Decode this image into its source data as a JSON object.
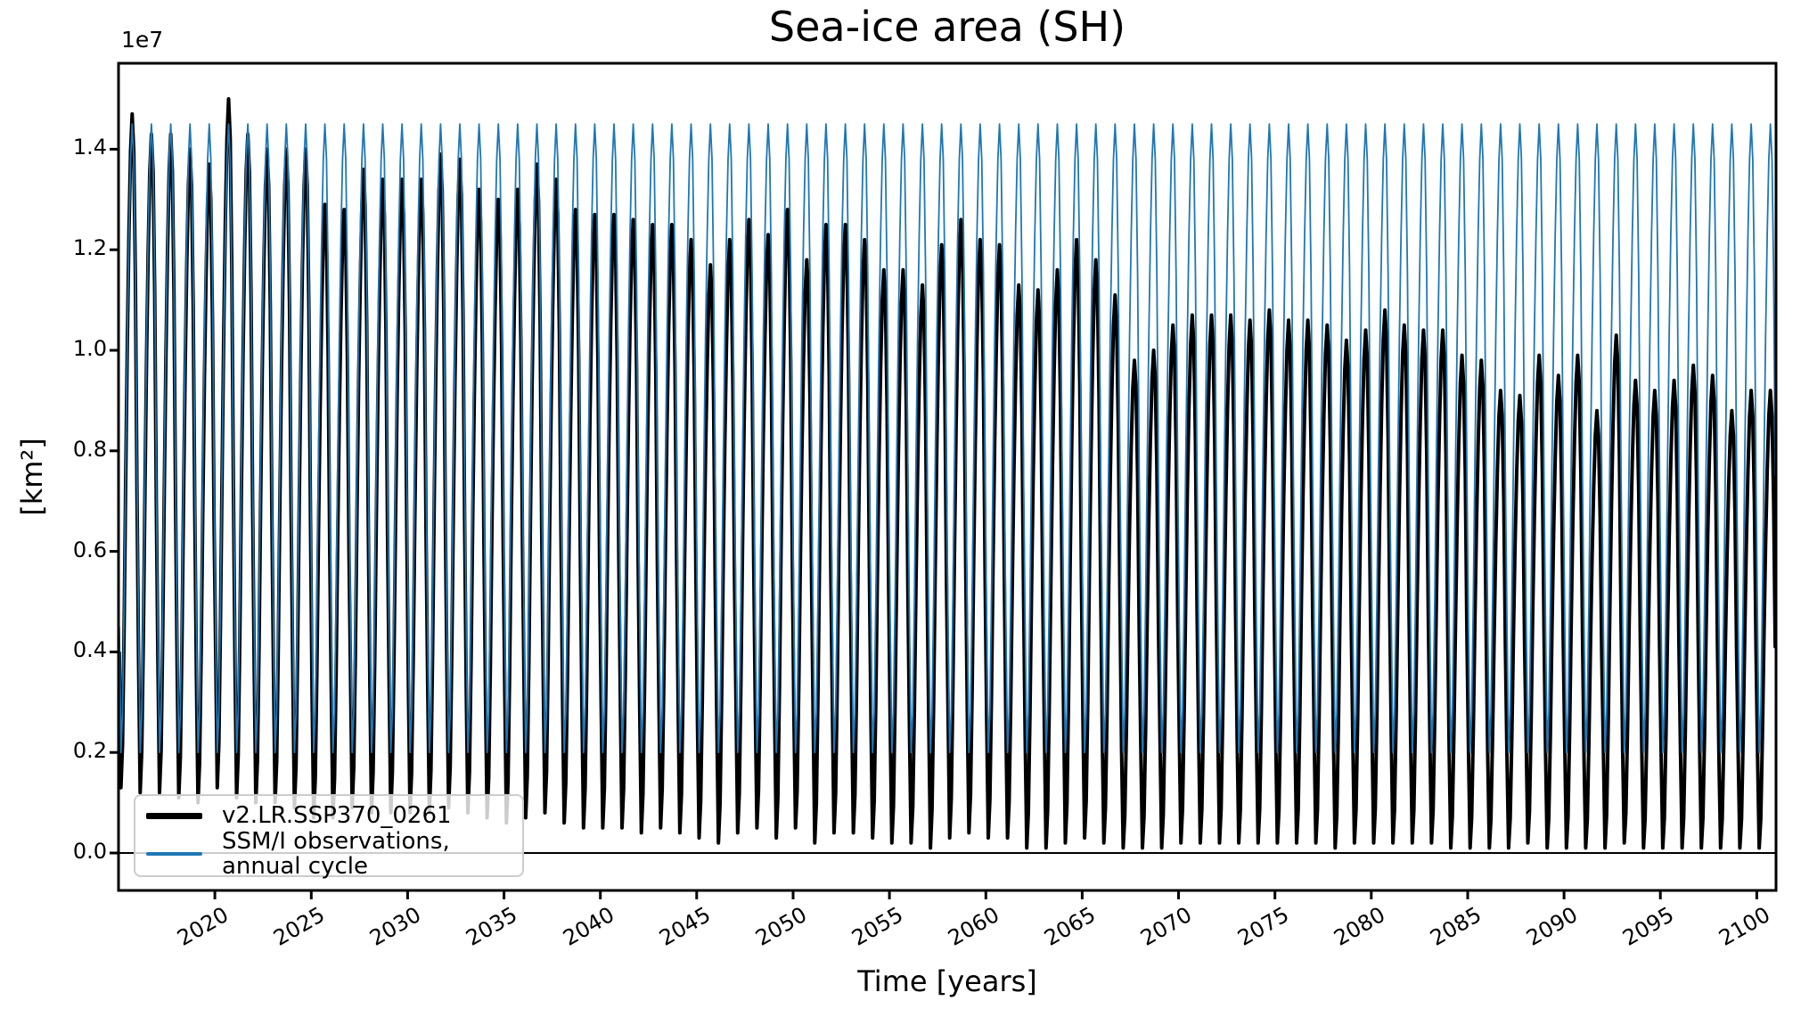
{
  "figure": {
    "title": "Sea-ice area (SH)"
  },
  "axes": {
    "offset_text": "1e7",
    "xlabel": "Time [years]",
    "ylabel": "[km²]"
  },
  "legend": {
    "entries": [
      {
        "label": "v2.LR.SSP370_0261",
        "color": "#000000",
        "sample_thickness": 7
      },
      {
        "label": "SSM/I observations, annual cycle",
        "color": "#1f77b4",
        "sample_thickness": 4
      }
    ]
  },
  "chart_data": {
    "type": "line",
    "title": "Sea-ice area (SH)",
    "xlabel": "Time [years]",
    "ylabel": "[km²]",
    "offset_text": "1e7",
    "units": "km², values in 1e7",
    "grid": false,
    "legend_position": "lower left",
    "zero_line": true,
    "xlim": [
      2015,
      2101
    ],
    "ylim_1e7": [
      -0.075,
      1.572
    ],
    "xticks": [
      2020,
      2025,
      2030,
      2035,
      2040,
      2045,
      2050,
      2055,
      2060,
      2065,
      2070,
      2075,
      2080,
      2085,
      2090,
      2095,
      2100
    ],
    "yticks_1e7": [
      0.0,
      0.2,
      0.4,
      0.6,
      0.8,
      1.0,
      1.2,
      1.4
    ],
    "normalized_monthly_shape": [
      0.2,
      0.0,
      0.064,
      0.24,
      0.464,
      0.664,
      0.824,
      0.944,
      1.0,
      0.944,
      0.76,
      0.44
    ],
    "series": [
      {
        "name": "v2.LR.SSP370_0261",
        "color": "#000000",
        "linewidth": 4,
        "kind": "monthly_values_built_from_annual_envelope",
        "start_year": 2015,
        "end_year": 2100,
        "annual_max_1e7": [
          1.47,
          1.43,
          1.43,
          1.4,
          1.37,
          1.5,
          1.43,
          1.4,
          1.4,
          1.4,
          1.29,
          1.28,
          1.36,
          1.34,
          1.34,
          1.34,
          1.39,
          1.38,
          1.32,
          1.3,
          1.32,
          1.37,
          1.34,
          1.28,
          1.27,
          1.27,
          1.26,
          1.25,
          1.25,
          1.22,
          1.17,
          1.22,
          1.26,
          1.23,
          1.28,
          1.18,
          1.25,
          1.25,
          1.22,
          1.16,
          1.16,
          1.13,
          1.21,
          1.26,
          1.22,
          1.21,
          1.13,
          1.12,
          1.16,
          1.22,
          1.18,
          1.11,
          0.98,
          1.0,
          1.05,
          1.07,
          1.07,
          1.07,
          1.06,
          1.08,
          1.06,
          1.06,
          1.05,
          1.02,
          1.04,
          1.08,
          1.05,
          1.04,
          1.04,
          0.99,
          0.98,
          0.92,
          0.91,
          0.99,
          0.95,
          0.99,
          0.88,
          1.03,
          0.94,
          0.92,
          0.94,
          0.97,
          0.95,
          0.88,
          0.92,
          0.92
        ],
        "annual_min_1e7": [
          0.13,
          0.12,
          0.12,
          0.11,
          0.1,
          0.13,
          0.11,
          0.1,
          0.1,
          0.09,
          0.07,
          0.07,
          0.09,
          0.08,
          0.08,
          0.08,
          0.08,
          0.09,
          0.08,
          0.07,
          0.06,
          0.07,
          0.08,
          0.06,
          0.05,
          0.05,
          0.05,
          0.04,
          0.05,
          0.04,
          0.03,
          0.02,
          0.04,
          0.05,
          0.03,
          0.05,
          0.02,
          0.04,
          0.04,
          0.03,
          0.02,
          0.02,
          0.01,
          0.03,
          0.04,
          0.03,
          0.03,
          0.01,
          0.01,
          0.02,
          0.03,
          0.02,
          0.01,
          0.01,
          0.01,
          0.02,
          0.02,
          0.02,
          0.02,
          0.02,
          0.02,
          0.02,
          0.02,
          0.01,
          0.02,
          0.02,
          0.02,
          0.02,
          0.02,
          0.01,
          0.01,
          0.01,
          0.01,
          0.02,
          0.01,
          0.01,
          0.01,
          0.01,
          0.02,
          0.01,
          0.01,
          0.01,
          0.01,
          0.01,
          0.01,
          0.01
        ]
      },
      {
        "name": "SSM/I observations, annual cycle",
        "color": "#1f77b4",
        "linewidth": 1.8,
        "kind": "repeating_monthly_climatology",
        "start_year": 2015,
        "end_year": 2100,
        "monthly_values_1e7": [
          0.45,
          0.2,
          0.28,
          0.5,
          0.78,
          1.03,
          1.23,
          1.38,
          1.45,
          1.38,
          1.15,
          0.75
        ]
      }
    ]
  }
}
